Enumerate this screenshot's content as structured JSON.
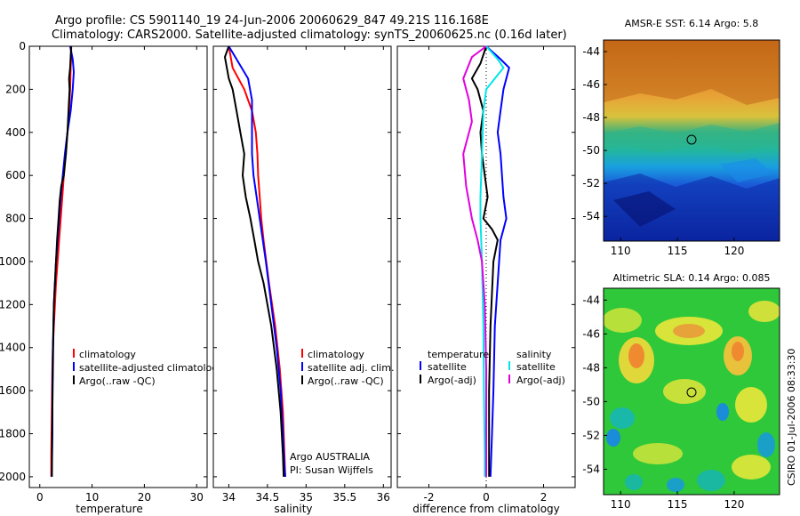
{
  "header": {
    "line1": "Argo profile: CS 5901140_19 24-Jun-2006 20060629_847 49.21S 116.168E",
    "line2": "Climatology: CARS2000. Satellite-adjusted climatology: synTS_20060625.nc (0.16d later)"
  },
  "side_note": "CSIRO 01-Jul-2006 08:33:30",
  "colors": {
    "climatology": "#ff0000",
    "satellite": "#0000ff",
    "argo": "#000000",
    "salinity_sat": "#00e6e6",
    "salinity_argo": "#e000e0"
  },
  "chart_data": [
    {
      "type": "line",
      "xlabel": "temperature",
      "xlim": [
        -2,
        32
      ],
      "ylim": [
        0,
        2050
      ],
      "y_reversed": true,
      "xticks": [
        0,
        10,
        20,
        30
      ],
      "yticks": [
        0,
        200,
        400,
        600,
        800,
        1000,
        1200,
        1400,
        1600,
        1800,
        2000
      ],
      "legend": [
        "climatology",
        "satellite-adjusted climatology",
        "Argo(..raw -QC)"
      ],
      "series": [
        {
          "name": "climatology",
          "color": "#ff0000",
          "x": [
            6.0,
            6.0,
            5.9,
            5.8,
            5.6,
            5.3,
            4.9,
            4.6,
            4.3,
            4.0,
            3.7,
            3.4,
            3.1,
            2.9,
            2.7,
            2.5,
            2.4,
            2.3,
            2.2,
            2.2
          ],
          "y": [
            0,
            50,
            100,
            200,
            300,
            400,
            500,
            600,
            700,
            800,
            900,
            1000,
            1100,
            1200,
            1300,
            1400,
            1500,
            1700,
            1900,
            2000
          ]
        },
        {
          "name": "satellite-adjusted climatology",
          "color": "#0000ff",
          "x": [
            5.8,
            6.3,
            6.5,
            6.3,
            5.9,
            5.3,
            4.8,
            4.4,
            4.0,
            3.7,
            3.4,
            3.1,
            2.9,
            2.7,
            2.6,
            2.5,
            2.4,
            2.4,
            2.3
          ],
          "y": [
            0,
            60,
            120,
            200,
            300,
            400,
            500,
            600,
            700,
            800,
            900,
            1000,
            1100,
            1200,
            1300,
            1400,
            1600,
            1800,
            2000
          ]
        },
        {
          "name": "Argo(..raw -QC)",
          "color": "#000000",
          "x": [
            6.0,
            5.8,
            5.6,
            5.7,
            5.5,
            5.3,
            5.0,
            4.6,
            4.1,
            3.8,
            3.6,
            3.3,
            3.1,
            2.9,
            2.7,
            2.6,
            2.5,
            2.4,
            2.3
          ],
          "y": [
            0,
            100,
            150,
            200,
            300,
            400,
            500,
            600,
            650,
            720,
            800,
            900,
            1000,
            1100,
            1200,
            1300,
            1500,
            1700,
            2000
          ]
        }
      ]
    },
    {
      "type": "line",
      "xlabel": "salinity",
      "xlim": [
        33.8,
        36.1
      ],
      "ylim": [
        0,
        2050
      ],
      "y_reversed": true,
      "xticks": [
        34,
        34.5,
        35,
        35.5,
        36
      ],
      "legend": [
        "climatology",
        "satellite adj. clim.",
        "Argo(..raw -QC)"
      ],
      "note": [
        "Argo AUSTRALIA",
        "PI: Susan Wijffels"
      ],
      "series": [
        {
          "name": "climatology",
          "color": "#ff0000",
          "x": [
            34.0,
            34.05,
            34.2,
            34.3,
            34.35,
            34.37,
            34.38,
            34.4,
            34.42,
            34.45,
            34.52,
            34.6,
            34.66,
            34.7,
            34.72,
            34.73
          ],
          "y": [
            0,
            100,
            200,
            300,
            400,
            500,
            600,
            700,
            800,
            900,
            1100,
            1300,
            1500,
            1700,
            1900,
            2000
          ]
        },
        {
          "name": "satellite adj. clim.",
          "color": "#0000ff",
          "x": [
            34.0,
            34.1,
            34.25,
            34.3,
            34.3,
            34.3,
            34.32,
            34.36,
            34.42,
            34.48,
            34.55,
            34.62,
            34.67,
            34.7,
            34.72,
            34.73
          ],
          "y": [
            0,
            60,
            150,
            250,
            400,
            500,
            600,
            700,
            850,
            1000,
            1200,
            1400,
            1600,
            1800,
            1950,
            2000
          ]
        },
        {
          "name": "Argo(..raw -QC)",
          "color": "#000000",
          "x": [
            34.0,
            33.95,
            34.0,
            34.05,
            34.1,
            34.15,
            34.2,
            34.18,
            34.22,
            34.28,
            34.33,
            34.38,
            34.45,
            34.55,
            34.62,
            34.67,
            34.7,
            34.71
          ],
          "y": [
            0,
            50,
            150,
            200,
            300,
            400,
            500,
            600,
            700,
            800,
            900,
            1000,
            1100,
            1300,
            1500,
            1700,
            1900,
            2000
          ]
        }
      ]
    },
    {
      "type": "line",
      "xlabel": "difference from climatology",
      "xlim": [
        -3.1,
        3.1
      ],
      "ylim": [
        0,
        2050
      ],
      "y_reversed": true,
      "xticks": [
        -2,
        0,
        2
      ],
      "legend_groups": {
        "temperature": [
          "satellite",
          "Argo(-adj)"
        ],
        "salinity": [
          "satellite",
          "Argo(-adj)"
        ]
      },
      "series": [
        {
          "name": "temperature satellite",
          "color": "#0000ff",
          "x": [
            0.0,
            0.5,
            0.8,
            0.6,
            0.5,
            0.4,
            0.5,
            0.6,
            0.7,
            0.6,
            0.5,
            0.4,
            0.3,
            0.25,
            0.2,
            0.15
          ],
          "y": [
            0,
            60,
            100,
            200,
            300,
            400,
            500,
            700,
            800,
            850,
            900,
            1100,
            1300,
            1600,
            1800,
            2000
          ]
        },
        {
          "name": "temperature Argo(-adj)",
          "color": "#000000",
          "x": [
            0.0,
            -0.2,
            -0.5,
            -0.3,
            -0.1,
            -0.2,
            -0.15,
            -0.05,
            0.05,
            -0.1,
            0.2,
            0.4,
            0.25,
            0.15,
            0.1,
            0.1
          ],
          "y": [
            0,
            80,
            150,
            200,
            300,
            400,
            500,
            600,
            700,
            800,
            850,
            900,
            1000,
            1300,
            1600,
            2000
          ]
        },
        {
          "name": "salinity satellite",
          "color": "#00e6e6",
          "x": [
            0.0,
            0.4,
            0.6,
            0.3,
            0.0,
            -0.1,
            -0.15,
            -0.2,
            -0.2,
            -0.15,
            -0.1,
            -0.08,
            -0.05,
            -0.05
          ],
          "y": [
            0,
            60,
            100,
            150,
            200,
            300,
            500,
            700,
            800,
            1000,
            1300,
            1600,
            1900,
            2000
          ]
        },
        {
          "name": "salinity Argo(-adj)",
          "color": "#e000e0",
          "x": [
            0.0,
            -0.5,
            -0.8,
            -0.6,
            -0.5,
            -0.8,
            -0.7,
            -0.5,
            -0.3,
            -0.15,
            -0.05,
            0.0,
            0.0,
            0.0
          ],
          "y": [
            0,
            50,
            150,
            250,
            350,
            500,
            650,
            800,
            900,
            1000,
            1200,
            1500,
            1800,
            2000
          ]
        }
      ]
    },
    {
      "type": "heatmap",
      "title": "AMSR-E SST: 6.14 Argo: 5.8",
      "xlim": [
        108.5,
        124
      ],
      "ylim": [
        -55.5,
        -43.3
      ],
      "xticks": [
        110,
        115,
        120
      ],
      "yticks": [
        -44,
        -46,
        -48,
        -50,
        -52,
        -54
      ],
      "marker": {
        "lon": 116.168,
        "lat": -49.21
      }
    },
    {
      "type": "heatmap",
      "title": "Altimetric SLA: 0.14 Argo: 0.085",
      "xlim": [
        108.5,
        124
      ],
      "ylim": [
        -55.5,
        -43.3
      ],
      "xticks": [
        110,
        115,
        120
      ],
      "yticks": [
        -44,
        -46,
        -48,
        -50,
        -52,
        -54
      ],
      "marker": {
        "lon": 116.168,
        "lat": -49.21
      }
    }
  ]
}
